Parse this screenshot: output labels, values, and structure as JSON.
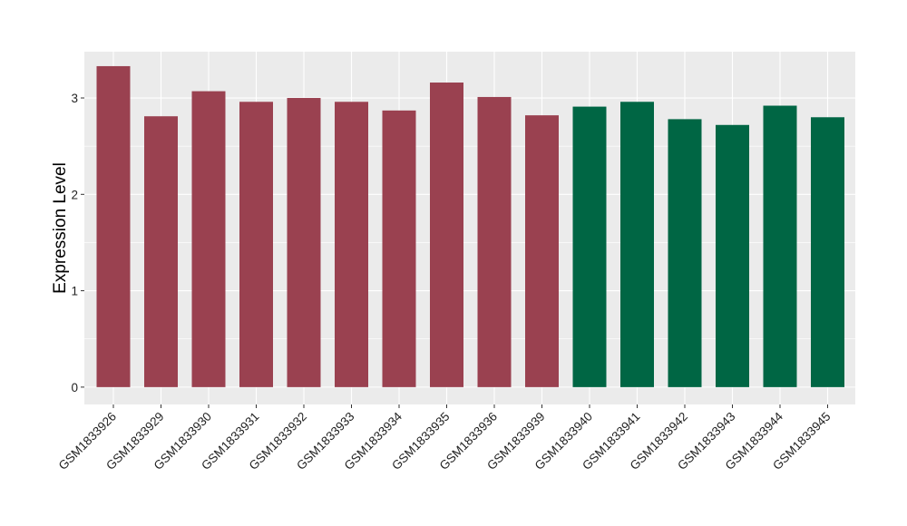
{
  "chart_data": {
    "type": "bar",
    "title": "",
    "xlabel": "",
    "ylabel": "Expression Level",
    "ylim": [
      -0.18,
      3.48
    ],
    "yticks": [
      0,
      1,
      2,
      3
    ],
    "grid": true,
    "legend": "none",
    "categories": [
      "GSM1833926",
      "GSM1833929",
      "GSM1833930",
      "GSM1833931",
      "GSM1833932",
      "GSM1833933",
      "GSM1833934",
      "GSM1833935",
      "GSM1833936",
      "GSM1833939",
      "GSM1833940",
      "GSM1833941",
      "GSM1833942",
      "GSM1833943",
      "GSM1833944",
      "GSM1833945"
    ],
    "values": [
      3.33,
      2.81,
      3.07,
      2.96,
      3.0,
      2.96,
      2.87,
      3.16,
      3.01,
      2.82,
      2.91,
      2.96,
      2.78,
      2.72,
      2.92,
      2.8
    ],
    "group_colors": [
      "#9a4150",
      "#9a4150",
      "#9a4150",
      "#9a4150",
      "#9a4150",
      "#9a4150",
      "#9a4150",
      "#9a4150",
      "#9a4150",
      "#9a4150",
      "#006644",
      "#006644",
      "#006644",
      "#006644",
      "#006644",
      "#006644"
    ],
    "panel_color": "#ebebeb",
    "grid_color": "#ffffff"
  }
}
